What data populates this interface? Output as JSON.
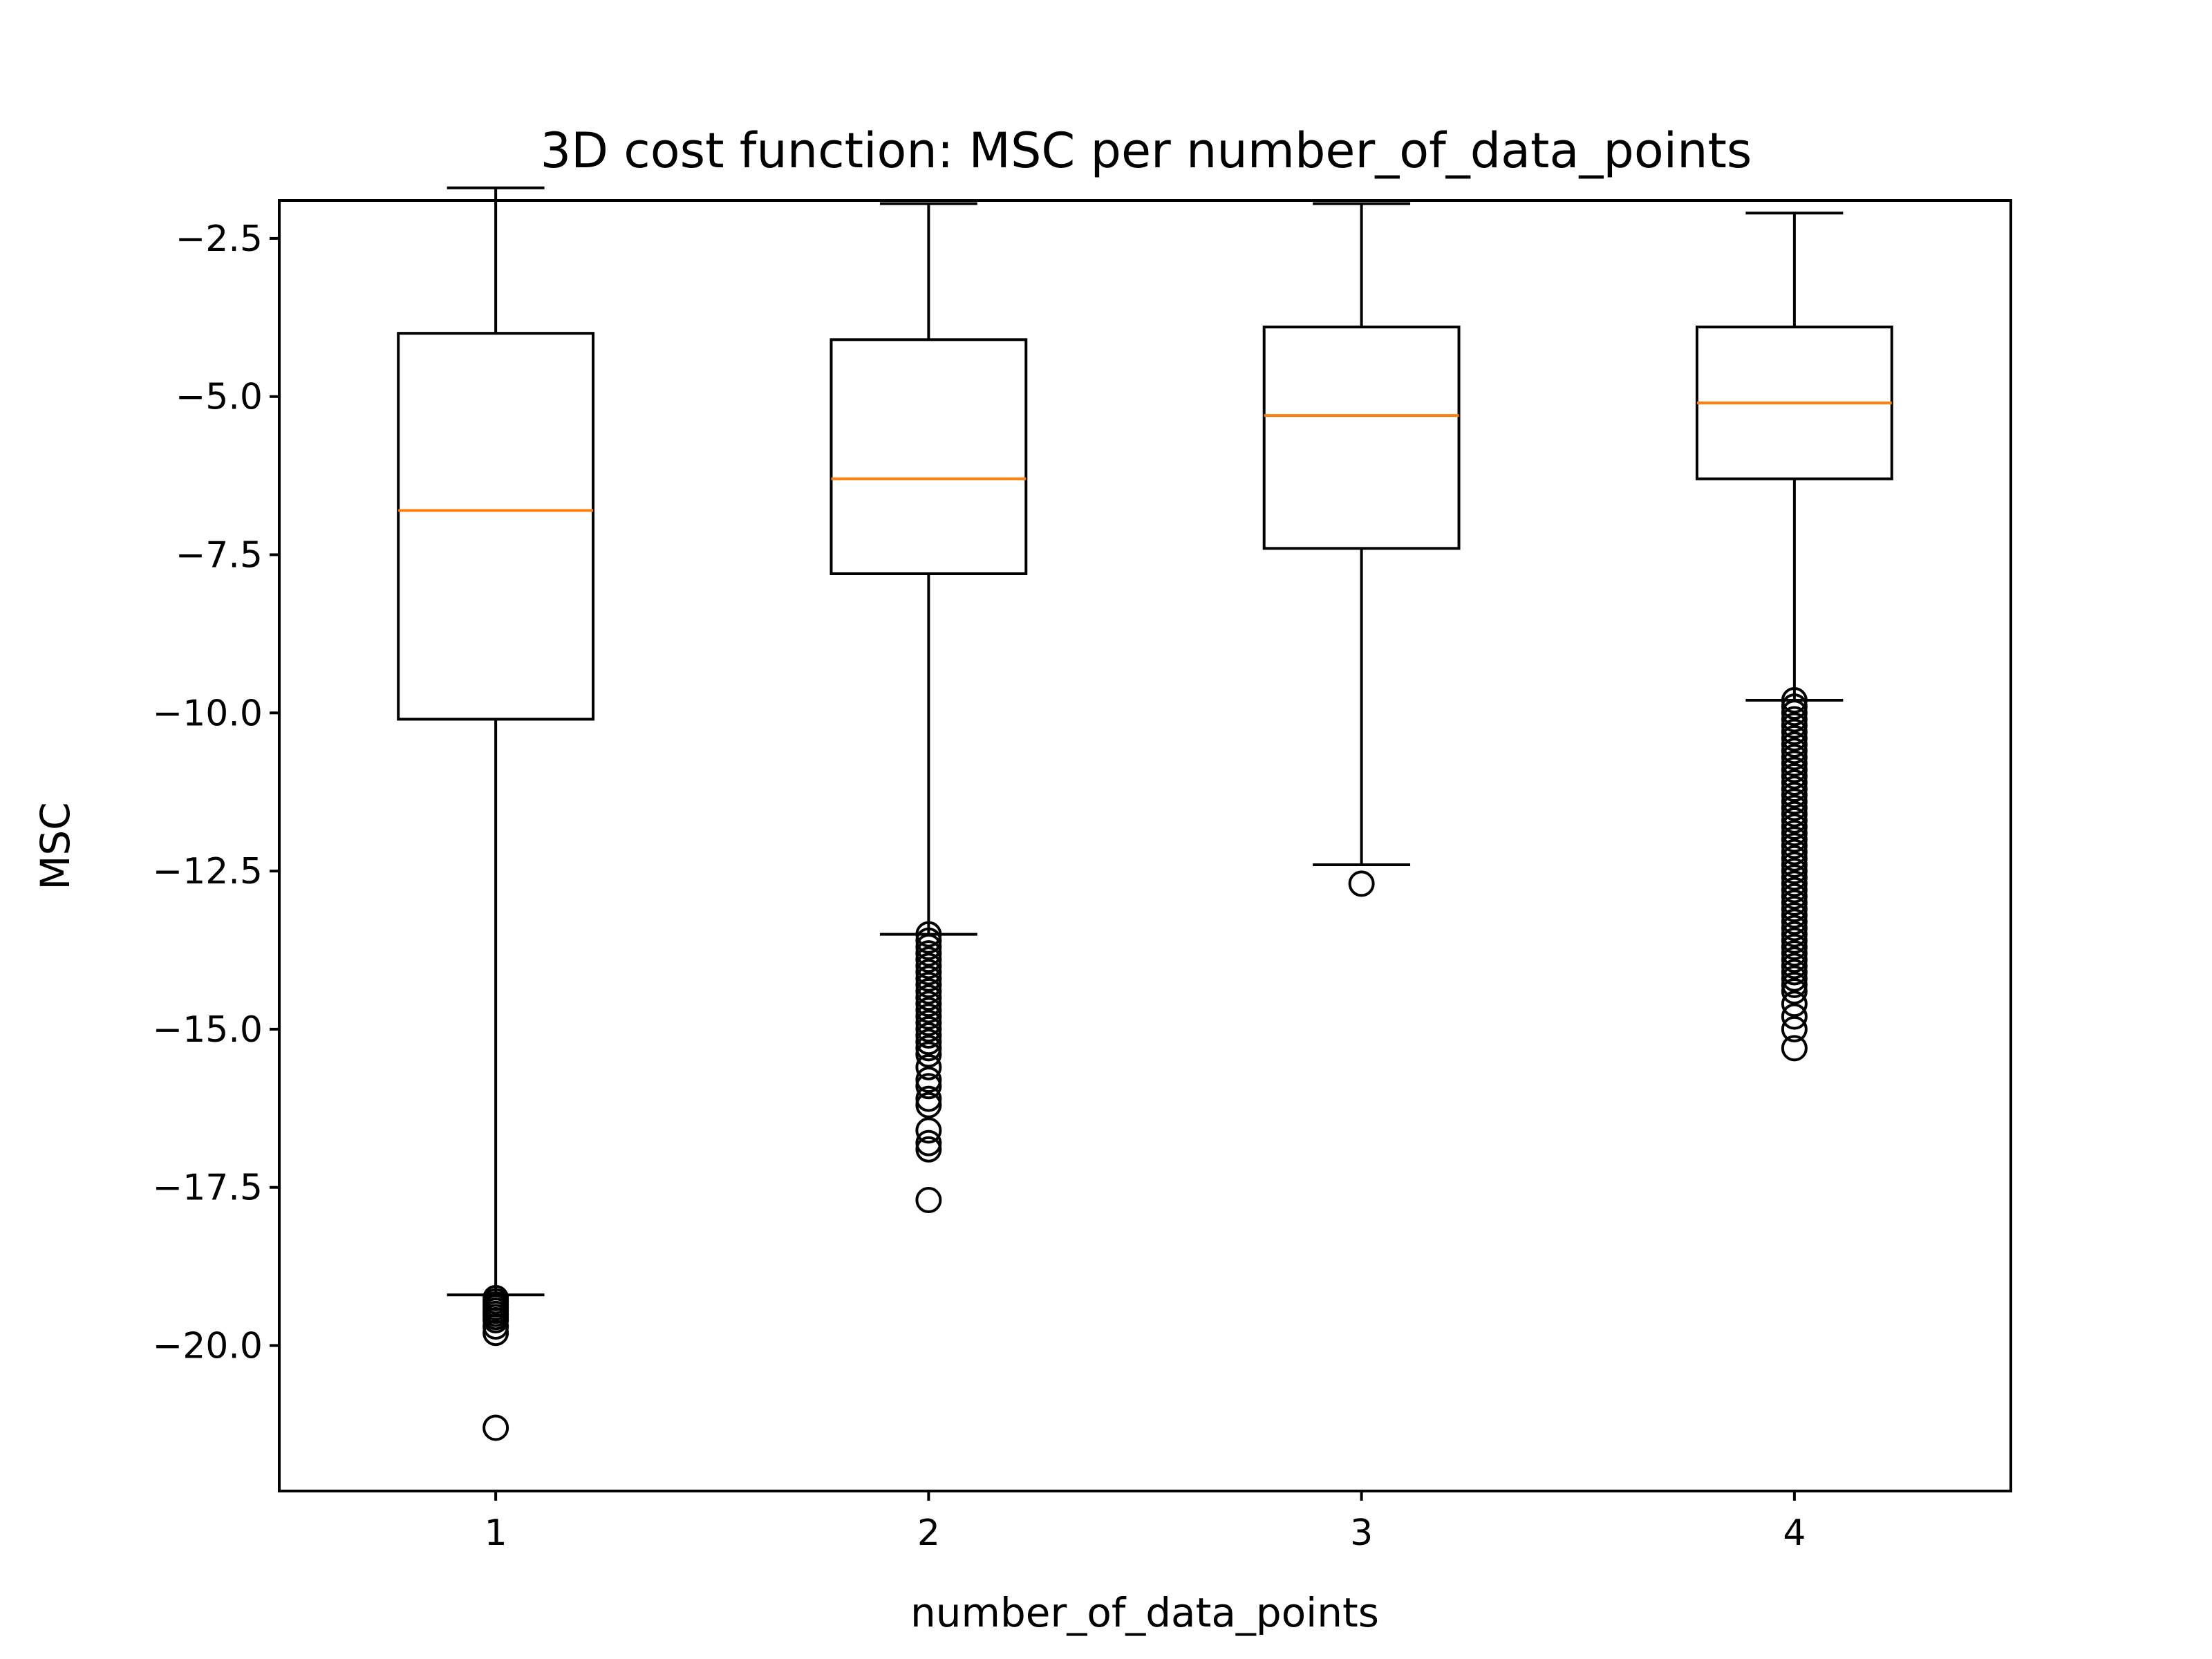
{
  "chart_data": {
    "type": "box",
    "title": "3D cost function: MSC per number_of_data_points",
    "xlabel": "number_of_data_points",
    "ylabel": "MSC",
    "categories": [
      "1",
      "2",
      "3",
      "4"
    ],
    "ylim": [
      -22.3,
      -1.9
    ],
    "yticks": [
      -2.5,
      -5.0,
      -7.5,
      -10.0,
      -12.5,
      -15.0,
      -17.5,
      -20.0
    ],
    "ytick_labels": [
      "−2.5",
      "−5.0",
      "−7.5",
      "−10.0",
      "−12.5",
      "−15.0",
      "−17.5",
      "−20.0"
    ],
    "grid": false,
    "colors": {
      "box": "#000000",
      "median": "#ff7f0e",
      "outlier": "#000000"
    },
    "boxes": [
      {
        "category": "1",
        "whisker_high": -1.7,
        "q3": -4.0,
        "median": -6.8,
        "q1": -10.1,
        "whisker_low": -19.2,
        "outliers": [
          -19.25,
          -19.3,
          -19.35,
          -19.4,
          -19.45,
          -19.5,
          -19.55,
          -19.6,
          -19.7,
          -19.8,
          -21.3
        ]
      },
      {
        "category": "2",
        "whisker_high": -1.95,
        "q3": -4.1,
        "median": -6.3,
        "q1": -7.8,
        "whisker_low": -13.5,
        "outliers": [
          -13.5,
          -13.6,
          -13.7,
          -13.8,
          -13.9,
          -14.0,
          -14.1,
          -14.2,
          -14.3,
          -14.4,
          -14.5,
          -14.6,
          -14.7,
          -14.8,
          -14.9,
          -15.0,
          -15.1,
          -15.2,
          -15.3,
          -15.4,
          -15.6,
          -15.8,
          -15.9,
          -16.1,
          -16.2,
          -16.6,
          -16.8,
          -16.9,
          -17.7
        ]
      },
      {
        "category": "3",
        "whisker_high": -1.95,
        "q3": -3.9,
        "median": -5.3,
        "q1": -7.4,
        "whisker_low": -12.4,
        "outliers": [
          -12.7
        ]
      },
      {
        "category": "4",
        "whisker_high": -2.1,
        "q3": -3.9,
        "median": -5.1,
        "q1": -6.3,
        "whisker_low": -9.8,
        "outliers": [
          -9.8,
          -9.9,
          -10.0,
          -10.1,
          -10.2,
          -10.3,
          -10.4,
          -10.5,
          -10.6,
          -10.7,
          -10.8,
          -10.9,
          -11.0,
          -11.1,
          -11.2,
          -11.3,
          -11.4,
          -11.5,
          -11.6,
          -11.7,
          -11.8,
          -11.9,
          -12.0,
          -12.1,
          -12.2,
          -12.3,
          -12.4,
          -12.5,
          -12.6,
          -12.7,
          -12.8,
          -12.9,
          -13.0,
          -13.1,
          -13.2,
          -13.3,
          -13.4,
          -13.5,
          -13.6,
          -13.7,
          -13.8,
          -13.9,
          -14.0,
          -14.1,
          -14.2,
          -14.3,
          -14.4,
          -14.6,
          -14.8,
          -15.0,
          -15.3
        ]
      }
    ]
  }
}
